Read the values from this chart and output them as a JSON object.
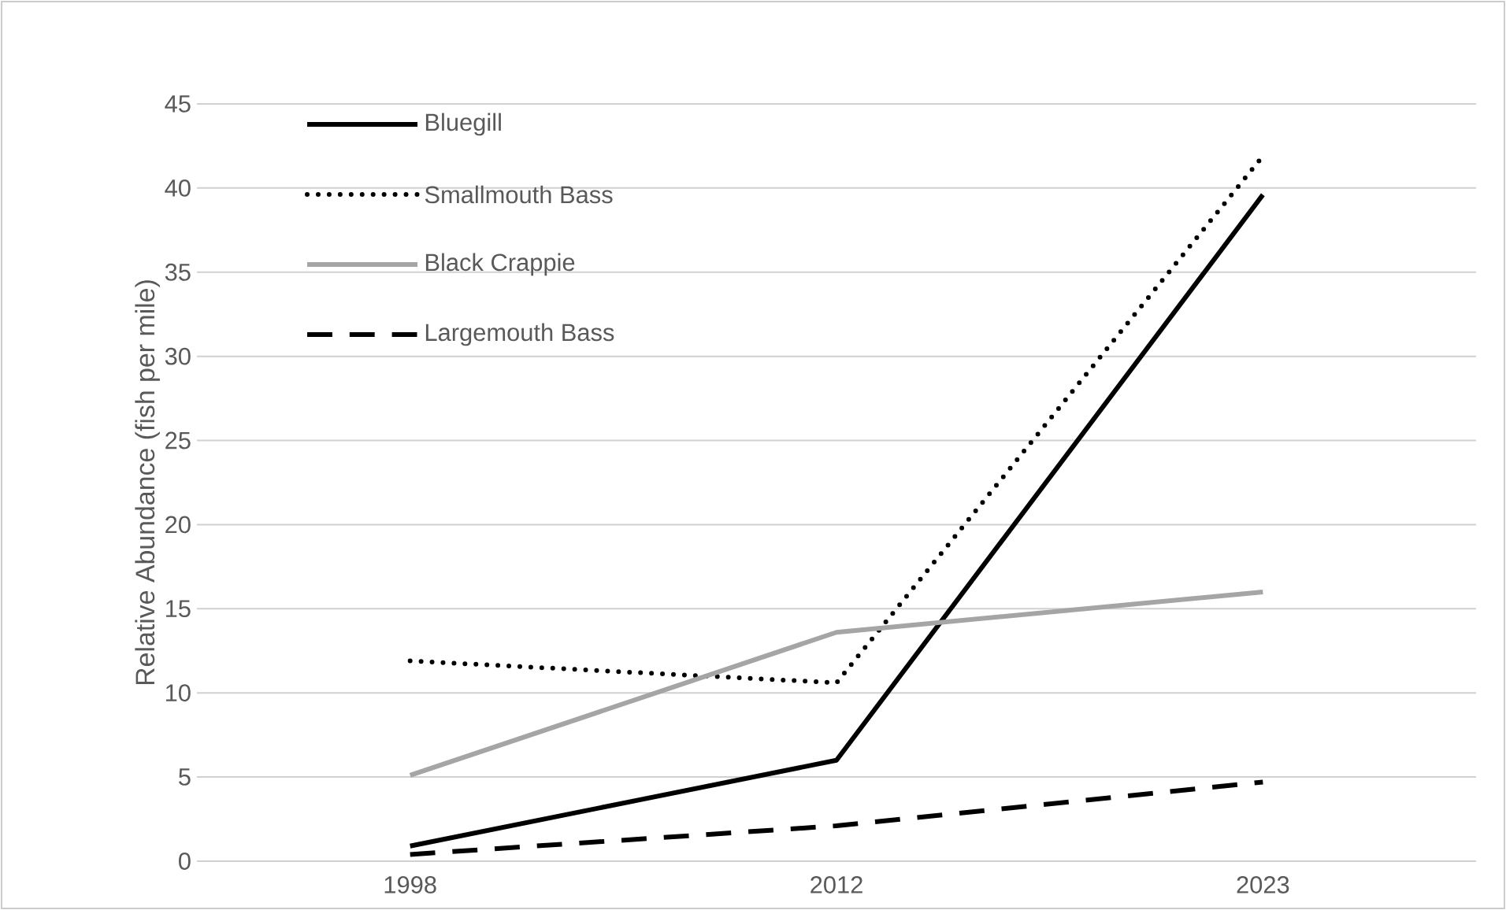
{
  "chart_data": {
    "type": "line",
    "ylabel": "Relative Abundance (fish per mile)",
    "categories": [
      "1998",
      "2012",
      "2023"
    ],
    "series": [
      {
        "name": "Bluegill",
        "color": "#000000",
        "line_style": "solid",
        "values": [
          0.9,
          6.0,
          39.6
        ]
      },
      {
        "name": "Smallmouth Bass",
        "color": "#000000",
        "line_style": "dotted",
        "values": [
          11.9,
          10.6,
          41.9
        ]
      },
      {
        "name": "Black Crappie",
        "color": "#a5a5a5",
        "line_style": "solid",
        "values": [
          5.1,
          13.6,
          16.0
        ]
      },
      {
        "name": "Largemouth Bass",
        "color": "#000000",
        "line_style": "dashed",
        "values": [
          0.4,
          2.1,
          4.7
        ]
      }
    ],
    "ylim": [
      0,
      45
    ],
    "yticks": [
      0,
      5,
      10,
      15,
      20,
      25,
      30,
      35,
      40,
      45
    ],
    "grid": "y",
    "legend": "top left"
  }
}
